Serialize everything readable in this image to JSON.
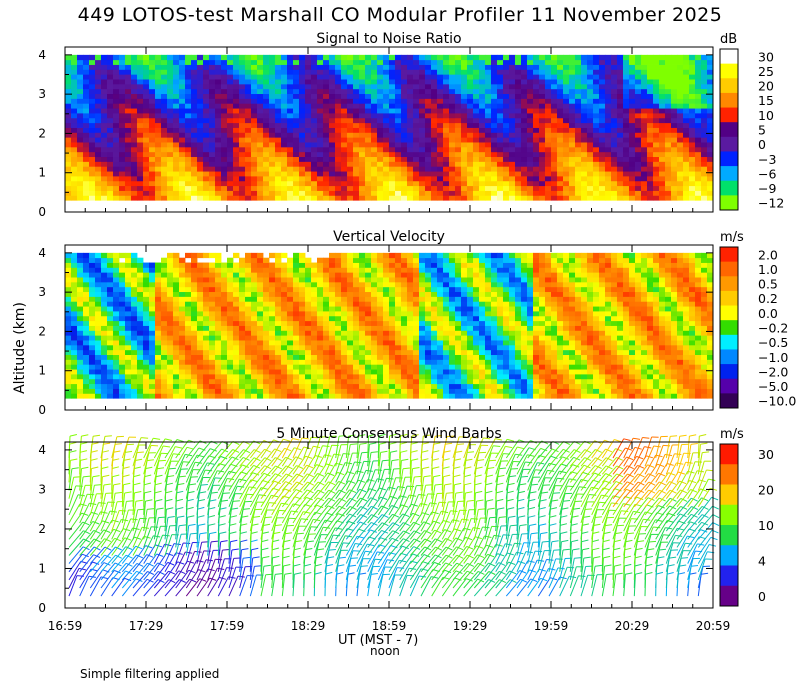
{
  "figure_title": "449 LOTOS-test Marshall CO Modular Profiler 11 November 2025",
  "y_axis_label": "Altitude (km)",
  "x_axis_label": "UT  (MST - 7)",
  "noon_label": "noon",
  "footnote": "Simple filtering applied",
  "chart_data": [
    {
      "type": "heatmap",
      "title": "Signal to Noise Ratio",
      "xlabel": "UT (MST - 7)",
      "ylabel": "Altitude (km)",
      "x_ticks": [
        "16:59",
        "17:29",
        "17:59",
        "18:29",
        "18:59",
        "19:29",
        "19:59",
        "20:29",
        "20:59"
      ],
      "y_ticks": [
        "0",
        "1",
        "2",
        "3",
        "4"
      ],
      "ylim": [
        0,
        4.2
      ],
      "data_altitude_range_km": [
        0.3,
        4.0
      ],
      "colorbar_unit": "dB",
      "colorbar_labels": [
        "30",
        "25",
        "20",
        "15",
        "10",
        "5",
        "0",
        "−3",
        "−6",
        "−9",
        "−12"
      ],
      "colorbar_colors": [
        "#ffffff",
        "#ffff00",
        "#ffcc00",
        "#ff8800",
        "#ff2200",
        "#520085",
        "#5a1aa0",
        "#0022ff",
        "#00aaff",
        "#00e06a",
        "#7fff00"
      ]
    },
    {
      "type": "heatmap",
      "title": "Vertical Velocity",
      "xlabel": "UT (MST - 7)",
      "ylabel": "Altitude (km)",
      "x_ticks": [
        "16:59",
        "17:29",
        "17:59",
        "18:29",
        "18:59",
        "19:29",
        "19:59",
        "20:29",
        "20:59"
      ],
      "y_ticks": [
        "0",
        "1",
        "2",
        "3",
        "4"
      ],
      "ylim": [
        0,
        4.2
      ],
      "data_altitude_range_km": [
        0.3,
        4.0
      ],
      "colorbar_unit": "m/s",
      "colorbar_labels": [
        "2.0",
        "1.0",
        "0.5",
        "0.2",
        "0.0",
        "−0.2",
        "−0.5",
        "−1.0",
        "−2.0",
        "−5.0",
        "−10.0"
      ],
      "colorbar_colors": [
        "#ff2200",
        "#ff6600",
        "#ff9900",
        "#ffcc00",
        "#ffff00",
        "#33dd00",
        "#00eeff",
        "#0088ff",
        "#0022ee",
        "#5500aa",
        "#330055"
      ]
    },
    {
      "type": "scatter",
      "subtype": "wind barbs",
      "title": "5 Minute Consensus Wind Barbs",
      "xlabel": "UT (MST - 7)",
      "ylabel": "Altitude (km)",
      "x_ticks": [
        "16:59",
        "17:29",
        "17:59",
        "18:29",
        "18:59",
        "19:29",
        "19:59",
        "20:29",
        "20:59"
      ],
      "y_ticks": [
        "0",
        "1",
        "2",
        "3",
        "4"
      ],
      "ylim": [
        0,
        4.2
      ],
      "colorbar_unit": "m/s",
      "colorbar_labels": [
        "30",
        "20",
        "10",
        "4",
        "0"
      ],
      "colorbar_colors": [
        "#ff1a00",
        "#ff7700",
        "#ffcc00",
        "#88ff00",
        "#22dd44",
        "#00aaff",
        "#2222ee",
        "#660088"
      ]
    }
  ]
}
